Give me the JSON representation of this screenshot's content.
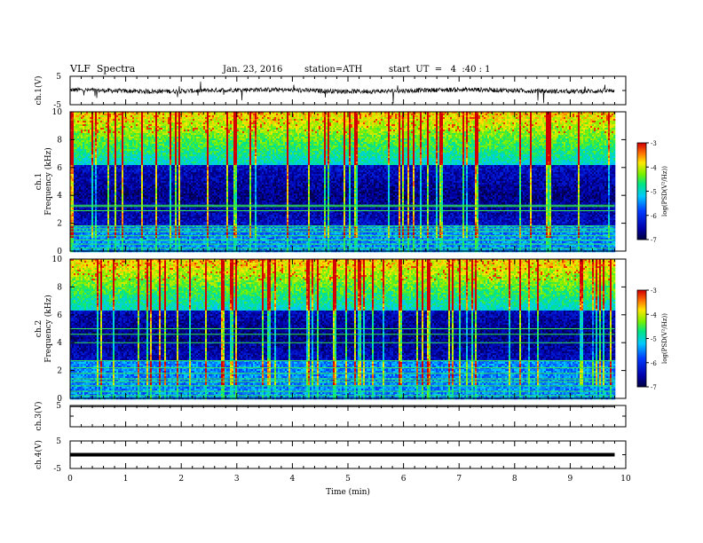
{
  "header": {
    "title": "VLF  Spectra",
    "date": "Jan. 23, 2016",
    "station": "station=ATH",
    "start": "start  UT  =   4  :40 : 1"
  },
  "chart_data": {
    "type": "heatmap",
    "xlabel": "Time  (min)",
    "x_ticks": [
      "0",
      "1",
      "2",
      "3",
      "4",
      "5",
      "6",
      "7",
      "8",
      "9",
      "10"
    ],
    "xlim": [
      0,
      10
    ],
    "data_end_min": 9.8,
    "panels": [
      {
        "id": "ch1_wave",
        "ylabel": "ch.1(V)",
        "y_ticks": [
          "5",
          "-5"
        ],
        "ylim": [
          -5,
          5
        ],
        "trace": "noisy",
        "baseline": 0
      },
      {
        "id": "ch1_spec",
        "ylabel_top": "ch.1",
        "ylabel": "Frequency  (kHz)",
        "y_ticks": [
          "0",
          "2",
          "4",
          "6",
          "8",
          "10"
        ],
        "ylim": [
          0,
          10
        ],
        "colorbar": {
          "label": "log(PSD(V²/Hz))",
          "ticks": [
            "-3",
            "-4",
            "-5",
            "-6",
            "-7"
          ],
          "range": [
            -7,
            -3
          ]
        },
        "dark_band_khz": [
          1.8,
          6.2
        ],
        "steady_lines_khz": [
          0.2,
          0.5,
          0.8,
          1.1,
          1.4,
          1.6,
          1.8,
          2.9,
          3.2,
          3.3
        ]
      },
      {
        "id": "ch2_spec",
        "ylabel_top": "ch.2",
        "ylabel": "Frequency  (kHz)",
        "y_ticks": [
          "0",
          "2",
          "4",
          "6",
          "8",
          "10"
        ],
        "ylim": [
          0,
          10
        ],
        "colorbar": {
          "label": "log(PSD(V²/Hz))",
          "ticks": [
            "-3",
            "-4",
            "-5",
            "-6",
            "-7"
          ],
          "range": [
            -7,
            -3
          ]
        },
        "dark_band_khz": [
          2.8,
          6.3
        ],
        "steady_lines_khz": [
          0.2,
          0.5,
          0.9,
          1.2,
          1.4,
          1.8,
          2.2,
          2.7,
          4.0,
          4.6,
          5.0
        ]
      },
      {
        "id": "ch3_wave",
        "ylabel": "ch.3(V)",
        "y_ticks": [
          "5"
        ],
        "ylim": [
          -5,
          5
        ],
        "trace": "flat",
        "baseline": 4.5
      },
      {
        "id": "ch4_wave",
        "ylabel": "ch.4(V)",
        "y_ticks": [
          "5",
          "-5"
        ],
        "ylim": [
          -5,
          5
        ],
        "trace": "thick",
        "baseline": 0
      }
    ]
  },
  "colors": {
    "axis": "#000000",
    "trace": "#000000",
    "background": "#ffffff"
  }
}
